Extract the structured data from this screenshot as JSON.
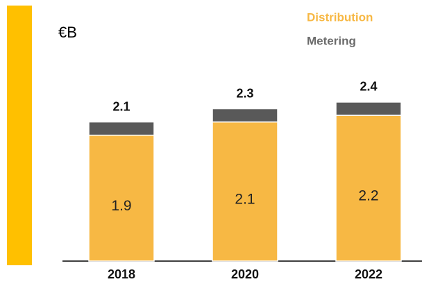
{
  "chart_data": {
    "type": "stacked_bar",
    "unit_label": "€B",
    "categories": [
      "2018",
      "2020",
      "2022"
    ],
    "series": [
      {
        "name": "Distribution",
        "color": "#f7b844",
        "values": [
          1.9,
          2.1,
          2.2
        ]
      },
      {
        "name": "Metering",
        "color": "#595959",
        "values": [
          0.2,
          0.2,
          0.2
        ]
      }
    ],
    "totals": [
      2.1,
      2.3,
      2.4
    ],
    "ylim": [
      0,
      3.5
    ]
  }
}
